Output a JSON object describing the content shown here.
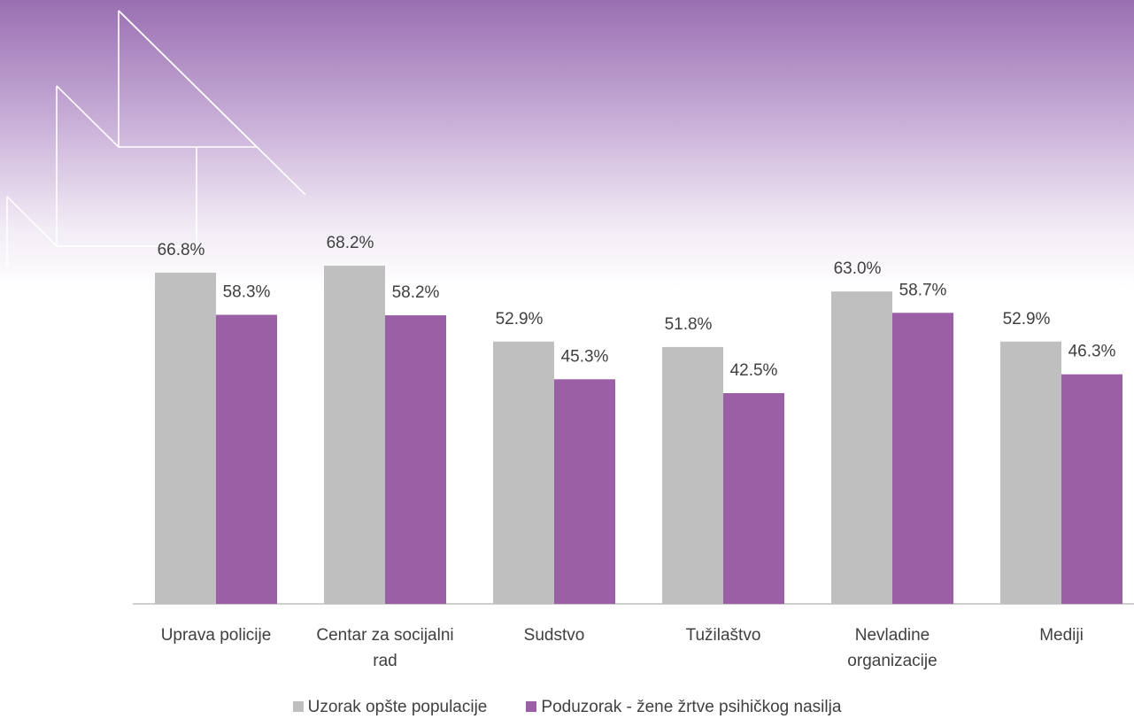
{
  "chart_data": {
    "type": "bar",
    "categories": [
      "Uprava policije",
      "Centar za socijalni rad",
      "Sudstvo",
      "Tužilaštvo",
      "Nevladine organizacije",
      "Mediji"
    ],
    "series": [
      {
        "name": "Uzorak opšte populacije",
        "color": "#bfbfbf",
        "values": [
          66.8,
          68.2,
          52.9,
          51.8,
          63.0,
          52.9
        ],
        "value_labels": [
          "66.8%",
          "68.2%",
          "52.9%",
          "51.8%",
          "63.0%",
          "52.9%"
        ]
      },
      {
        "name": "Poduzorak - žene žrtve psihičkog nasilja",
        "color": "#9b5fa5",
        "values": [
          58.3,
          58.2,
          45.3,
          42.5,
          58.7,
          46.3
        ],
        "value_labels": [
          "58.3%",
          "58.2%",
          "45.3%",
          "42.5%",
          "58.7%",
          "46.3%"
        ]
      }
    ],
    "ylim": [
      0,
      80
    ]
  }
}
